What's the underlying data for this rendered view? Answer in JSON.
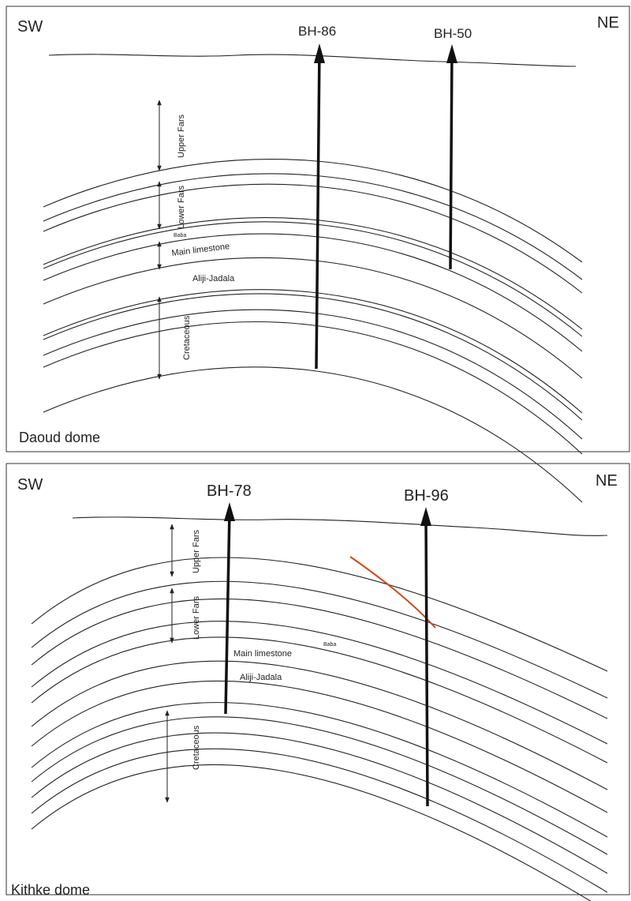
{
  "panels": [
    {
      "left_label": "SW",
      "right_label": "NE",
      "name": "Daoud dome",
      "boreholes": [
        "BH-86",
        "BH-50"
      ],
      "units": {
        "upper_fars": "Upper Fars",
        "lower_fars": "Lower Fars",
        "baba": "Baba",
        "main_limestone": "Main limestone",
        "aliji_jadala": "Aliji-Jadala",
        "cretaceous": "Cretaceous"
      }
    },
    {
      "left_label": "SW",
      "right_label": "NE",
      "name": "Kithke dome",
      "boreholes": [
        "BH-78",
        "BH-96"
      ],
      "units": {
        "upper_fars": "Upper Fars",
        "lower_fars": "Lower Fars",
        "baba": "Baba",
        "main_limestone": "Main limestone",
        "aliji_jadala": "Aliji-Jadala",
        "cretaceous": "Cretaceous"
      }
    }
  ]
}
